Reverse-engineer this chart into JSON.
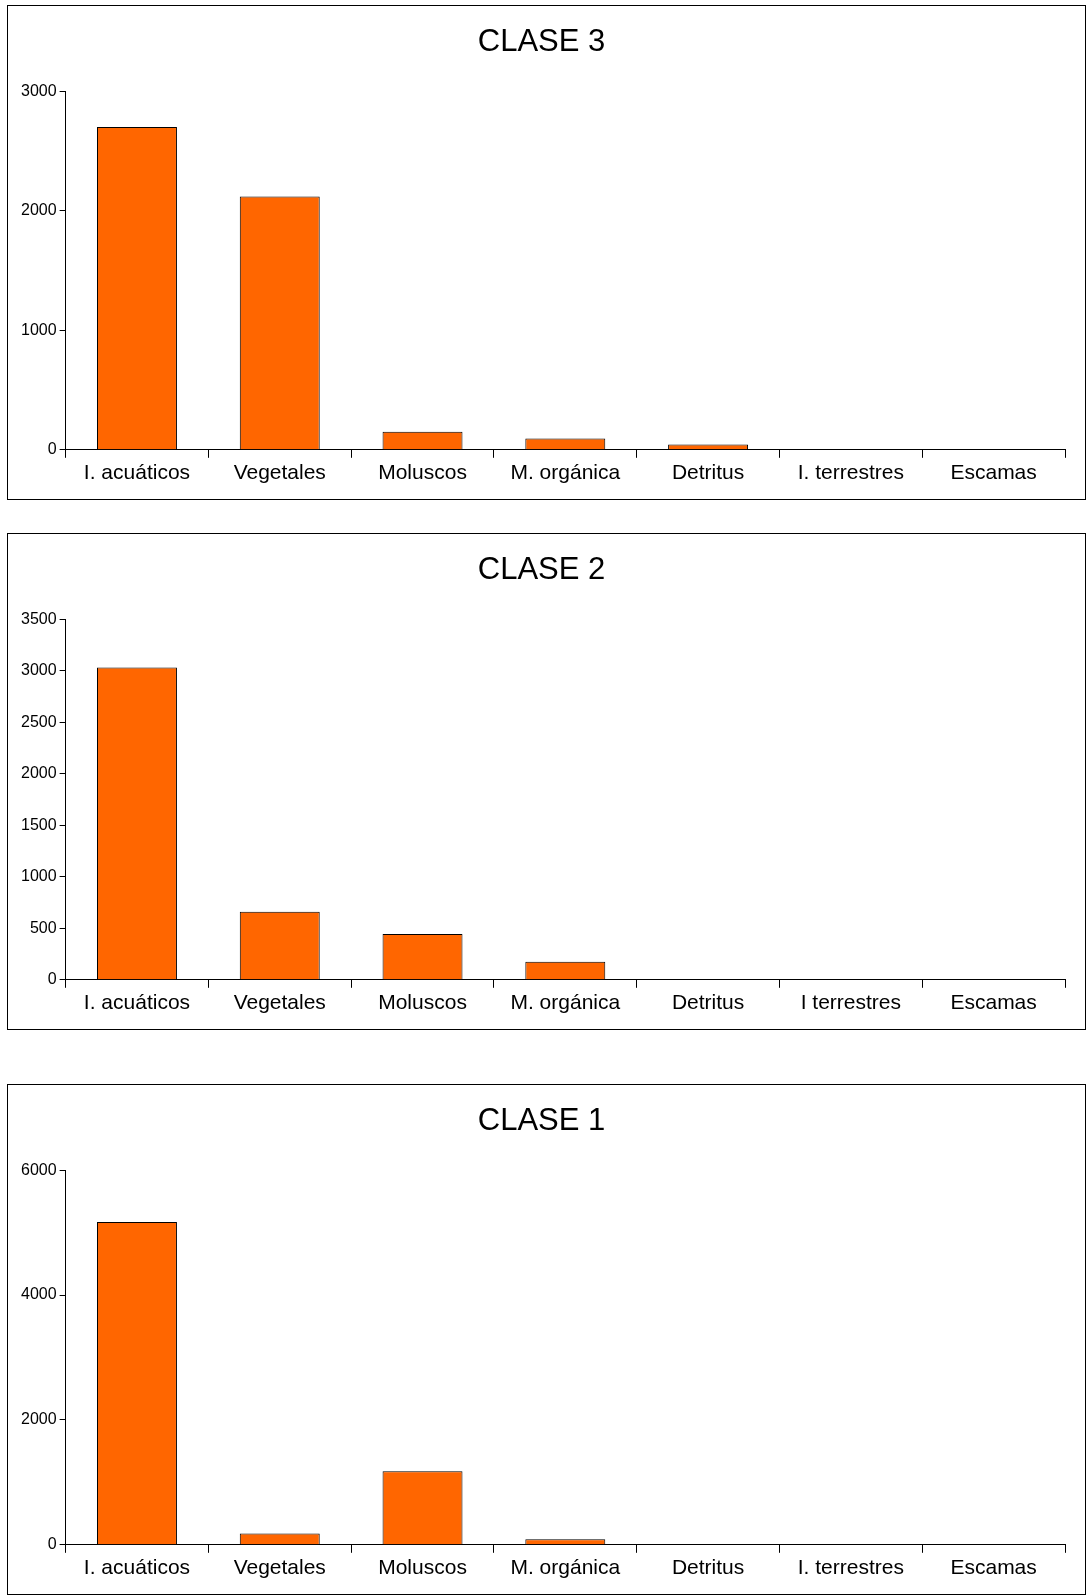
{
  "chart_data": [
    {
      "type": "bar",
      "title": "CLASE 3",
      "categories": [
        "I. acuáticos",
        "Vegetales",
        "Moluscos",
        "M. orgánica",
        "Detritus",
        "I. terrestres",
        "Escamas"
      ],
      "values": [
        2700,
        2120,
        150,
        95,
        45,
        0,
        0
      ],
      "color": "#ff6600",
      "ylim": [
        0,
        3000
      ],
      "yticks": [
        0,
        1000,
        2000,
        3000
      ],
      "grid": false,
      "legend": false
    },
    {
      "type": "bar",
      "title": "CLASE 2",
      "categories": [
        "I. acuáticos",
        "Vegetales",
        "Moluscos",
        "M. orgánica",
        "Detritus",
        "I terrestres",
        "Escamas"
      ],
      "values": [
        3030,
        660,
        445,
        175,
        0,
        0,
        0
      ],
      "color": "#ff6600",
      "ylim": [
        0,
        3500
      ],
      "yticks": [
        0,
        500,
        1000,
        1500,
        2000,
        2500,
        3000,
        3500
      ],
      "grid": false,
      "legend": false
    },
    {
      "type": "bar",
      "title": "CLASE 1",
      "categories": [
        "I. acuáticos",
        "Vegetales",
        "Moluscos",
        "M. orgánica",
        "Detritus",
        "I. terrestres",
        "Escamas"
      ],
      "values": [
        5170,
        180,
        1180,
        90,
        0,
        0,
        0
      ],
      "color": "#ff6600",
      "ylim": [
        0,
        6000
      ],
      "yticks": [
        0,
        2000,
        4000,
        6000
      ],
      "grid": false,
      "legend": false
    }
  ]
}
